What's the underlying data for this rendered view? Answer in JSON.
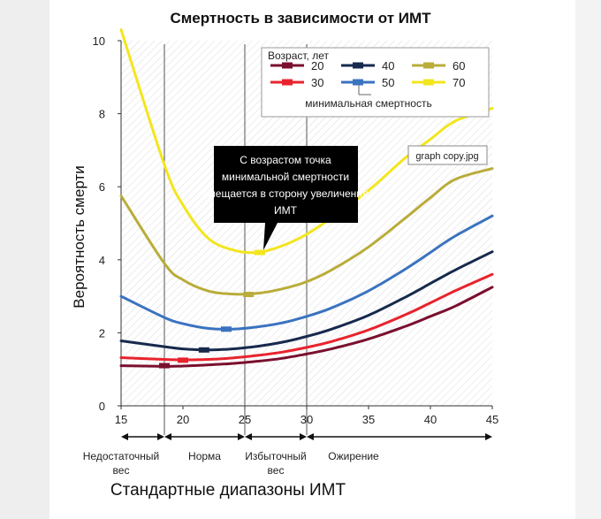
{
  "chart_data": {
    "type": "line",
    "title": "Смертность в зависимости от ИМТ",
    "xlabel": "Стандартные диапазоны ИМТ",
    "ylabel": "Вероятность смерти",
    "xlim": [
      15,
      45
    ],
    "ylim": [
      0,
      10
    ],
    "xticks": [
      15,
      20,
      25,
      30,
      35,
      40,
      45
    ],
    "yticks": [
      0,
      2,
      4,
      6,
      8,
      10
    ],
    "grid": "diagonal hatch background, vertical reference lines at 18.5, 25, 30",
    "legend_title": "Возраст, лет",
    "legend_note": "минимальная смертность",
    "legend_position": "top-right",
    "x": [
      15,
      18.5,
      20,
      22,
      24,
      26,
      28,
      30,
      32,
      35,
      38,
      40,
      42,
      45
    ],
    "series": [
      {
        "name": "20",
        "color": "#7a0f2e",
        "min_x": 18.5,
        "min_y": 1.1,
        "values": [
          1.1,
          1.08,
          1.09,
          1.12,
          1.16,
          1.22,
          1.3,
          1.42,
          1.56,
          1.83,
          2.18,
          2.45,
          2.73,
          3.25
        ]
      },
      {
        "name": "30",
        "color": "#e8232d",
        "min_x": 20,
        "min_y": 1.25,
        "values": [
          1.32,
          1.27,
          1.26,
          1.27,
          1.31,
          1.38,
          1.47,
          1.6,
          1.76,
          2.08,
          2.5,
          2.82,
          3.15,
          3.6
        ]
      },
      {
        "name": "40",
        "color": "#17294d",
        "min_x": 21.7,
        "min_y": 1.53,
        "values": [
          1.78,
          1.62,
          1.56,
          1.53,
          1.56,
          1.63,
          1.74,
          1.9,
          2.1,
          2.48,
          2.98,
          3.35,
          3.72,
          4.22
        ]
      },
      {
        "name": "50",
        "color": "#3a73c0",
        "min_x": 23.5,
        "min_y": 2.1,
        "values": [
          3.0,
          2.42,
          2.25,
          2.12,
          2.1,
          2.16,
          2.27,
          2.45,
          2.68,
          3.15,
          3.75,
          4.2,
          4.65,
          5.2
        ]
      },
      {
        "name": "60",
        "color": "#b9ac3a",
        "min_x": 25.3,
        "min_y": 3.05,
        "values": [
          5.75,
          3.9,
          3.45,
          3.15,
          3.06,
          3.08,
          3.2,
          3.4,
          3.72,
          4.35,
          5.15,
          5.7,
          6.2,
          6.5
        ]
      },
      {
        "name": "70",
        "color": "#f3e51e",
        "min_x": 26.2,
        "min_y": 4.2,
        "values": [
          10.3,
          6.6,
          5.5,
          4.6,
          4.27,
          4.2,
          4.38,
          4.7,
          5.15,
          5.9,
          6.8,
          7.3,
          7.8,
          8.15
        ]
      }
    ],
    "annotation": "С возрастом точка минимальной смертности смещается в сторону увеличения ИМТ",
    "stamp": "graph copy.jpg",
    "ranges": [
      {
        "label": "Недостаточный вес",
        "from": 15,
        "to": 18.5
      },
      {
        "label": "Норма",
        "from": 18.5,
        "to": 25
      },
      {
        "label": "Избыточный вес",
        "from": 25,
        "to": 30
      },
      {
        "label": "Ожирение",
        "from": 30,
        "to": 45
      }
    ]
  }
}
